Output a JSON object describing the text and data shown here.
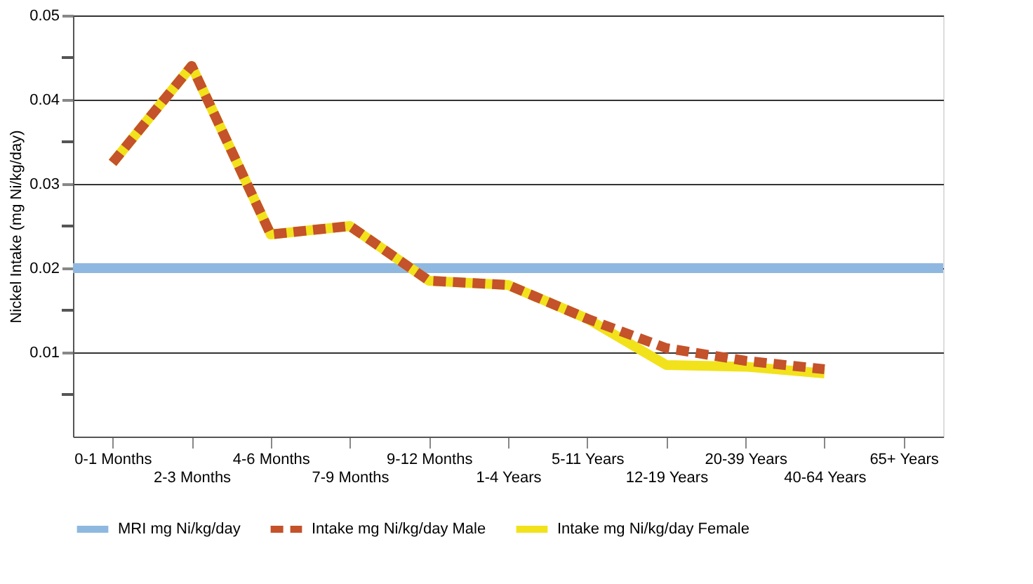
{
  "chart_data": {
    "type": "line",
    "ylabel": "Nickel Intake (mg Ni/kg/day)",
    "categories": [
      "0-1 Months",
      "2-3 Months",
      "4-6 Months",
      "7-9 Months",
      "9-12 Months",
      "1-4 Years",
      "5-11 Years",
      "12-19 Years",
      "20-39 Years",
      "40-64 Years",
      "65+ Years"
    ],
    "series": [
      {
        "name": "Intake mg Ni/kg/day Male",
        "color": "#c4522a",
        "line_style": "dashed",
        "values": [
          0.0325,
          0.044,
          0.024,
          0.025,
          0.0185,
          0.018,
          0.014,
          0.0105,
          0.009,
          0.008,
          null
        ]
      },
      {
        "name": "Intake mg Ni/kg/day Female",
        "color": "#f2e21c",
        "line_style": "solid",
        "values": [
          0.0325,
          0.044,
          0.024,
          0.025,
          0.0185,
          0.018,
          0.014,
          0.0085,
          0.0083,
          0.0075,
          null
        ]
      }
    ],
    "ref_lines": [
      {
        "axis": "y",
        "value": 0.02,
        "label": "MRI mg Ni/kg/day",
        "color": "#8fb8e0",
        "line_style": "solid"
      }
    ],
    "ylim": [
      0,
      0.05
    ],
    "yticks": [
      {
        "value": 0.005,
        "label": null
      },
      0.01,
      {
        "value": 0.015,
        "label": null
      },
      0.02,
      {
        "value": 0.025,
        "label": null
      },
      0.03,
      {
        "value": 0.035,
        "label": null
      },
      0.04,
      {
        "value": 0.045,
        "label": null
      },
      0.05
    ],
    "grid": "y",
    "legend": "bottom",
    "marker": "none"
  }
}
